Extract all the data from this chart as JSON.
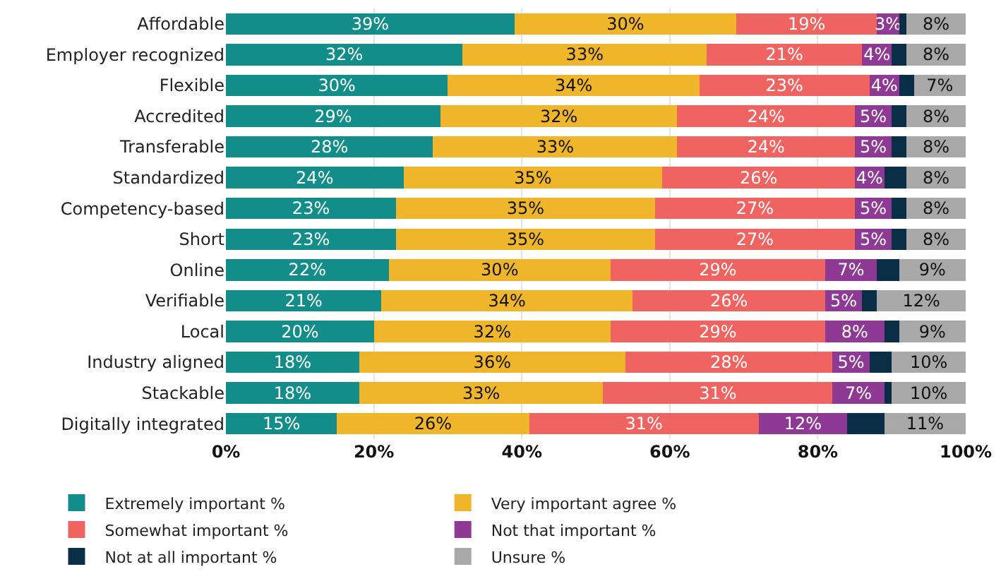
{
  "chart_data": {
    "type": "bar",
    "orientation": "horizontal",
    "stacked": true,
    "categories": [
      "Affordable",
      "Employer recognized",
      "Flexible",
      "Accredited",
      "Transferable",
      "Standardized",
      "Competency-based",
      "Short",
      "Online",
      "Verifiable",
      "Local",
      "Industry aligned",
      "Stackable",
      "Digitally integrated"
    ],
    "series": [
      {
        "name": "Extremely important %",
        "color": "#138d8a",
        "values": [
          39,
          32,
          30,
          29,
          28,
          24,
          23,
          23,
          22,
          21,
          20,
          18,
          18,
          15
        ],
        "value_labels": [
          "39%",
          "32%",
          "30%",
          "29%",
          "28%",
          "24%",
          "23%",
          "23%",
          "22%",
          "21%",
          "20%",
          "18%",
          "18%",
          "15%"
        ]
      },
      {
        "name": "Very important agree %",
        "color": "#f0b62b",
        "values": [
          30,
          33,
          34,
          32,
          33,
          35,
          35,
          35,
          30,
          34,
          32,
          36,
          33,
          26
        ],
        "value_labels": [
          "30%",
          "33%",
          "34%",
          "32%",
          "33%",
          "35%",
          "35%",
          "35%",
          "30%",
          "34%",
          "32%",
          "36%",
          "33%",
          "26%"
        ]
      },
      {
        "name": "Somewhat important %",
        "color": "#ef6461",
        "values": [
          19,
          21,
          23,
          24,
          24,
          26,
          27,
          27,
          29,
          26,
          29,
          28,
          31,
          31
        ],
        "value_labels": [
          "19%",
          "21%",
          "23%",
          "24%",
          "24%",
          "26%",
          "27%",
          "27%",
          "29%",
          "26%",
          "29%",
          "28%",
          "31%",
          "31%"
        ]
      },
      {
        "name": "Not that important %",
        "color": "#8e3a94",
        "values": [
          3,
          4,
          4,
          5,
          5,
          4,
          5,
          5,
          7,
          5,
          8,
          5,
          7,
          12
        ],
        "value_labels": [
          "3%",
          "4%",
          "4%",
          "5%",
          "5%",
          "4%",
          "5%",
          "5%",
          "7%",
          "5%",
          "8%",
          "5%",
          "7%",
          "12%"
        ]
      },
      {
        "name": "Not at all important %",
        "color": "#0a2e45",
        "values": [
          1,
          2,
          2,
          2,
          2,
          3,
          2,
          2,
          3,
          2,
          2,
          3,
          1,
          5
        ]
      },
      {
        "name": "Unsure %",
        "color": "#a8a8a8",
        "values": [
          8,
          8,
          7,
          8,
          8,
          8,
          8,
          8,
          9,
          12,
          9,
          10,
          10,
          11
        ],
        "value_labels": [
          "8%",
          "8%",
          "7%",
          "8%",
          "8%",
          "8%",
          "8%",
          "8%",
          "9%",
          "12%",
          "9%",
          "10%",
          "10%",
          "11%"
        ]
      }
    ],
    "xlim": [
      0,
      100
    ],
    "xticks": [
      {
        "value": 0,
        "label": "0%"
      },
      {
        "value": 20,
        "label": "20%"
      },
      {
        "value": 40,
        "label": "40%"
      },
      {
        "value": 60,
        "label": "60%"
      },
      {
        "value": 80,
        "label": "80%"
      },
      {
        "value": 100,
        "label": "100%"
      }
    ],
    "grid": "x",
    "legend": "bottom"
  }
}
